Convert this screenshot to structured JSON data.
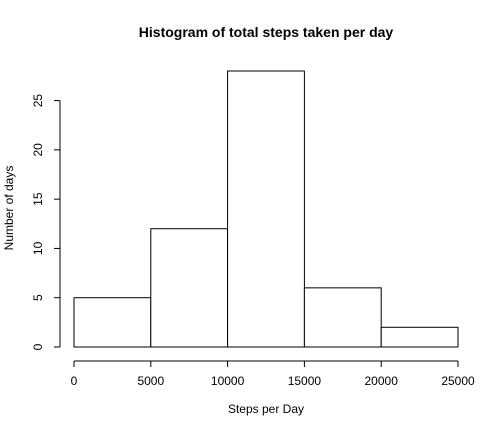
{
  "chart_data": {
    "type": "bar",
    "title": "Histogram of total steps taken per day",
    "xlabel": "Steps per Day",
    "ylabel": "Number of days",
    "bins": [
      {
        "start": 0,
        "end": 5000,
        "count": 5
      },
      {
        "start": 5000,
        "end": 10000,
        "count": 12
      },
      {
        "start": 10000,
        "end": 15000,
        "count": 28
      },
      {
        "start": 15000,
        "end": 20000,
        "count": 6
      },
      {
        "start": 20000,
        "end": 25000,
        "count": 2
      }
    ],
    "xlim": [
      0,
      25000
    ],
    "ylim": [
      0,
      28
    ],
    "xticks": [
      0,
      5000,
      10000,
      15000,
      20000,
      25000
    ],
    "yticks": [
      0,
      5,
      10,
      15,
      20,
      25
    ],
    "grid": false,
    "bar_fill": "#ffffff",
    "bar_stroke": "#000000"
  }
}
